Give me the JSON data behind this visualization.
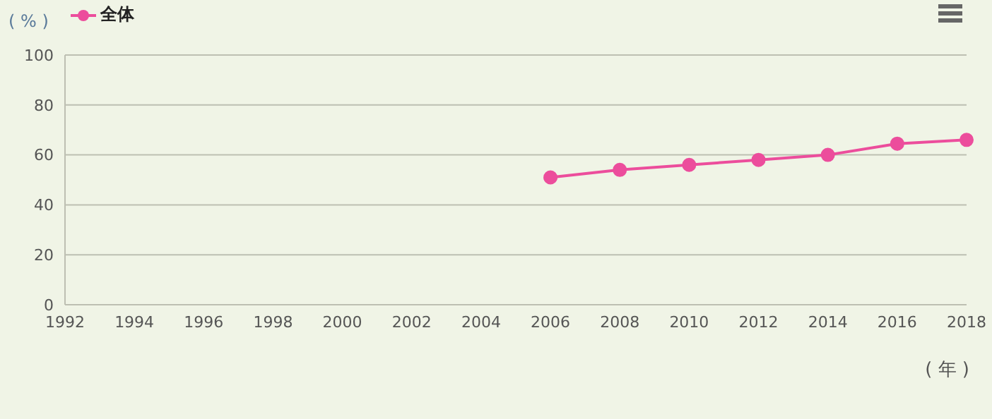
{
  "chart_data": {
    "type": "line",
    "xlabel": "( 年 )",
    "ylabel": "( % )",
    "categories": [
      "1992",
      "1994",
      "1996",
      "1998",
      "2000",
      "2002",
      "2004",
      "2006",
      "2008",
      "2010",
      "2012",
      "2014",
      "2016",
      "2018"
    ],
    "series": [
      {
        "name": "全体",
        "color": "#ec4d9c",
        "values": [
          null,
          null,
          null,
          null,
          null,
          null,
          null,
          51,
          54,
          56,
          58,
          60,
          64.5,
          66
        ]
      }
    ],
    "ylim": [
      0,
      100
    ],
    "yticks": [
      0,
      20,
      40,
      60,
      80,
      100
    ],
    "grid": "y",
    "legend": "top left",
    "marker": "circle",
    "line_style": "solid"
  }
}
